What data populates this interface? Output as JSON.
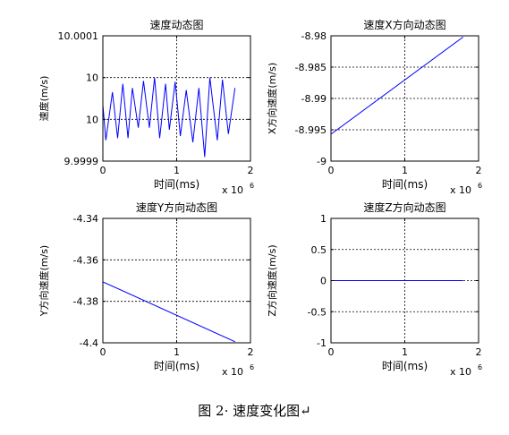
{
  "figure_caption": "图 2· 速度变化图↵",
  "chart_data": [
    {
      "type": "line",
      "title": "速度动态图",
      "xlabel": "时间(ms)",
      "ylabel": "速度(m/s)",
      "x_exponent_base": "x 10",
      "x_exponent_power": "6",
      "xlim": [
        0,
        2
      ],
      "ylim": [
        0,
        3
      ],
      "xticks": [
        "0",
        "1",
        "2"
      ],
      "yticks": [
        "9.9999",
        "10",
        "10",
        "10.0001"
      ],
      "grid": true,
      "series_color": "#0000ff",
      "series": [
        {
          "x": [
            0,
            0.04,
            0.13,
            0.2,
            0.27,
            0.34,
            0.4,
            0.48,
            0.55,
            0.63,
            0.7,
            0.77,
            0.85,
            0.9,
            0.98,
            1.05,
            1.13,
            1.22,
            1.3,
            1.38,
            1.45,
            1.55,
            1.62,
            1.7,
            1.79
          ],
          "y": [
            1.35,
            0.5,
            1.65,
            0.55,
            1.85,
            0.55,
            1.75,
            0.8,
            1.92,
            0.8,
            2.0,
            0.55,
            1.85,
            0.75,
            1.9,
            0.6,
            1.7,
            0.45,
            1.75,
            0.1,
            2.0,
            0.5,
            1.95,
            0.65,
            1.75
          ]
        }
      ]
    },
    {
      "type": "line",
      "title": "速度X方向动态图",
      "xlabel": "时间(ms)",
      "ylabel": "X方向速度(m/s)",
      "x_exponent_base": "x 10",
      "x_exponent_power": "6",
      "xlim": [
        0,
        2
      ],
      "ylim": [
        -9,
        -8.98
      ],
      "xticks": [
        "0",
        "1",
        "2"
      ],
      "yticks": [
        "-9",
        "-8.995",
        "-8.99",
        "-8.985",
        "-8.98"
      ],
      "grid": true,
      "series_color": "#0000ff",
      "series": [
        {
          "x": [
            0,
            1.79
          ],
          "y": [
            -8.9957,
            -8.9802
          ]
        }
      ]
    },
    {
      "type": "line",
      "title": "速度Y方向动态图",
      "xlabel": "时间(ms)",
      "ylabel": "Y方向速度(m/s)",
      "x_exponent_base": "x 10",
      "x_exponent_power": "6",
      "xlim": [
        0,
        2
      ],
      "ylim": [
        -4.4,
        -4.34
      ],
      "xticks": [
        "0",
        "1",
        "2"
      ],
      "yticks": [
        "-4.4",
        "-4.38",
        "-4.36",
        "-4.34"
      ],
      "grid": true,
      "series_color": "#0000ff",
      "series": [
        {
          "x": [
            0,
            1.79
          ],
          "y": [
            -4.3706,
            -4.3995
          ]
        }
      ]
    },
    {
      "type": "line",
      "title": "速度Z方向动态图",
      "xlabel": "时间(ms)",
      "ylabel": "Z方向速度(m/s)",
      "x_exponent_base": "x 10",
      "x_exponent_power": "6",
      "xlim": [
        0,
        2
      ],
      "ylim": [
        -1,
        1
      ],
      "xticks": [
        "0",
        "1",
        "2"
      ],
      "yticks": [
        "-1",
        "-0.5",
        "0",
        "0.5",
        "1"
      ],
      "grid": true,
      "series_color": "#0000ff",
      "series": [
        {
          "x": [
            0,
            1.79
          ],
          "y": [
            0,
            0
          ]
        }
      ]
    }
  ]
}
